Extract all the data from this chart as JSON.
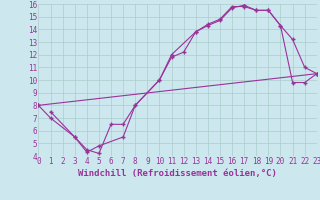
{
  "xlabel": "Windchill (Refroidissement éolien,°C)",
  "bg_color": "#cce8ee",
  "grid_color": "#aacccc",
  "line_color": "#993399",
  "xlim": [
    0,
    23
  ],
  "ylim": [
    4,
    16
  ],
  "xticks": [
    0,
    1,
    2,
    3,
    4,
    5,
    6,
    7,
    8,
    9,
    10,
    11,
    12,
    13,
    14,
    15,
    16,
    17,
    18,
    19,
    20,
    21,
    22,
    23
  ],
  "yticks": [
    4,
    5,
    6,
    7,
    8,
    9,
    10,
    11,
    12,
    13,
    14,
    15,
    16
  ],
  "line1_x": [
    1,
    3,
    4,
    5,
    6,
    7,
    8,
    10,
    11,
    12,
    13,
    14,
    15,
    16,
    17,
    18,
    19,
    20,
    21,
    22,
    23
  ],
  "line1_y": [
    7.5,
    5.5,
    4.5,
    4.2,
    6.5,
    6.5,
    8.0,
    10.0,
    11.8,
    12.2,
    13.8,
    14.3,
    14.7,
    15.7,
    15.9,
    15.5,
    15.5,
    14.3,
    13.2,
    11.0,
    10.5
  ],
  "line2_x": [
    0,
    1,
    3,
    4,
    5,
    7,
    8,
    10,
    11,
    13,
    14,
    15,
    16,
    17,
    18,
    19,
    20,
    21,
    22,
    23
  ],
  "line2_y": [
    8.0,
    7.0,
    5.5,
    4.3,
    4.8,
    5.5,
    8.0,
    10.0,
    12.0,
    13.8,
    14.4,
    14.8,
    15.8,
    15.8,
    15.5,
    15.5,
    14.3,
    9.8,
    9.8,
    10.5
  ],
  "line3_x": [
    0,
    23
  ],
  "line3_y": [
    8.0,
    10.5
  ]
}
